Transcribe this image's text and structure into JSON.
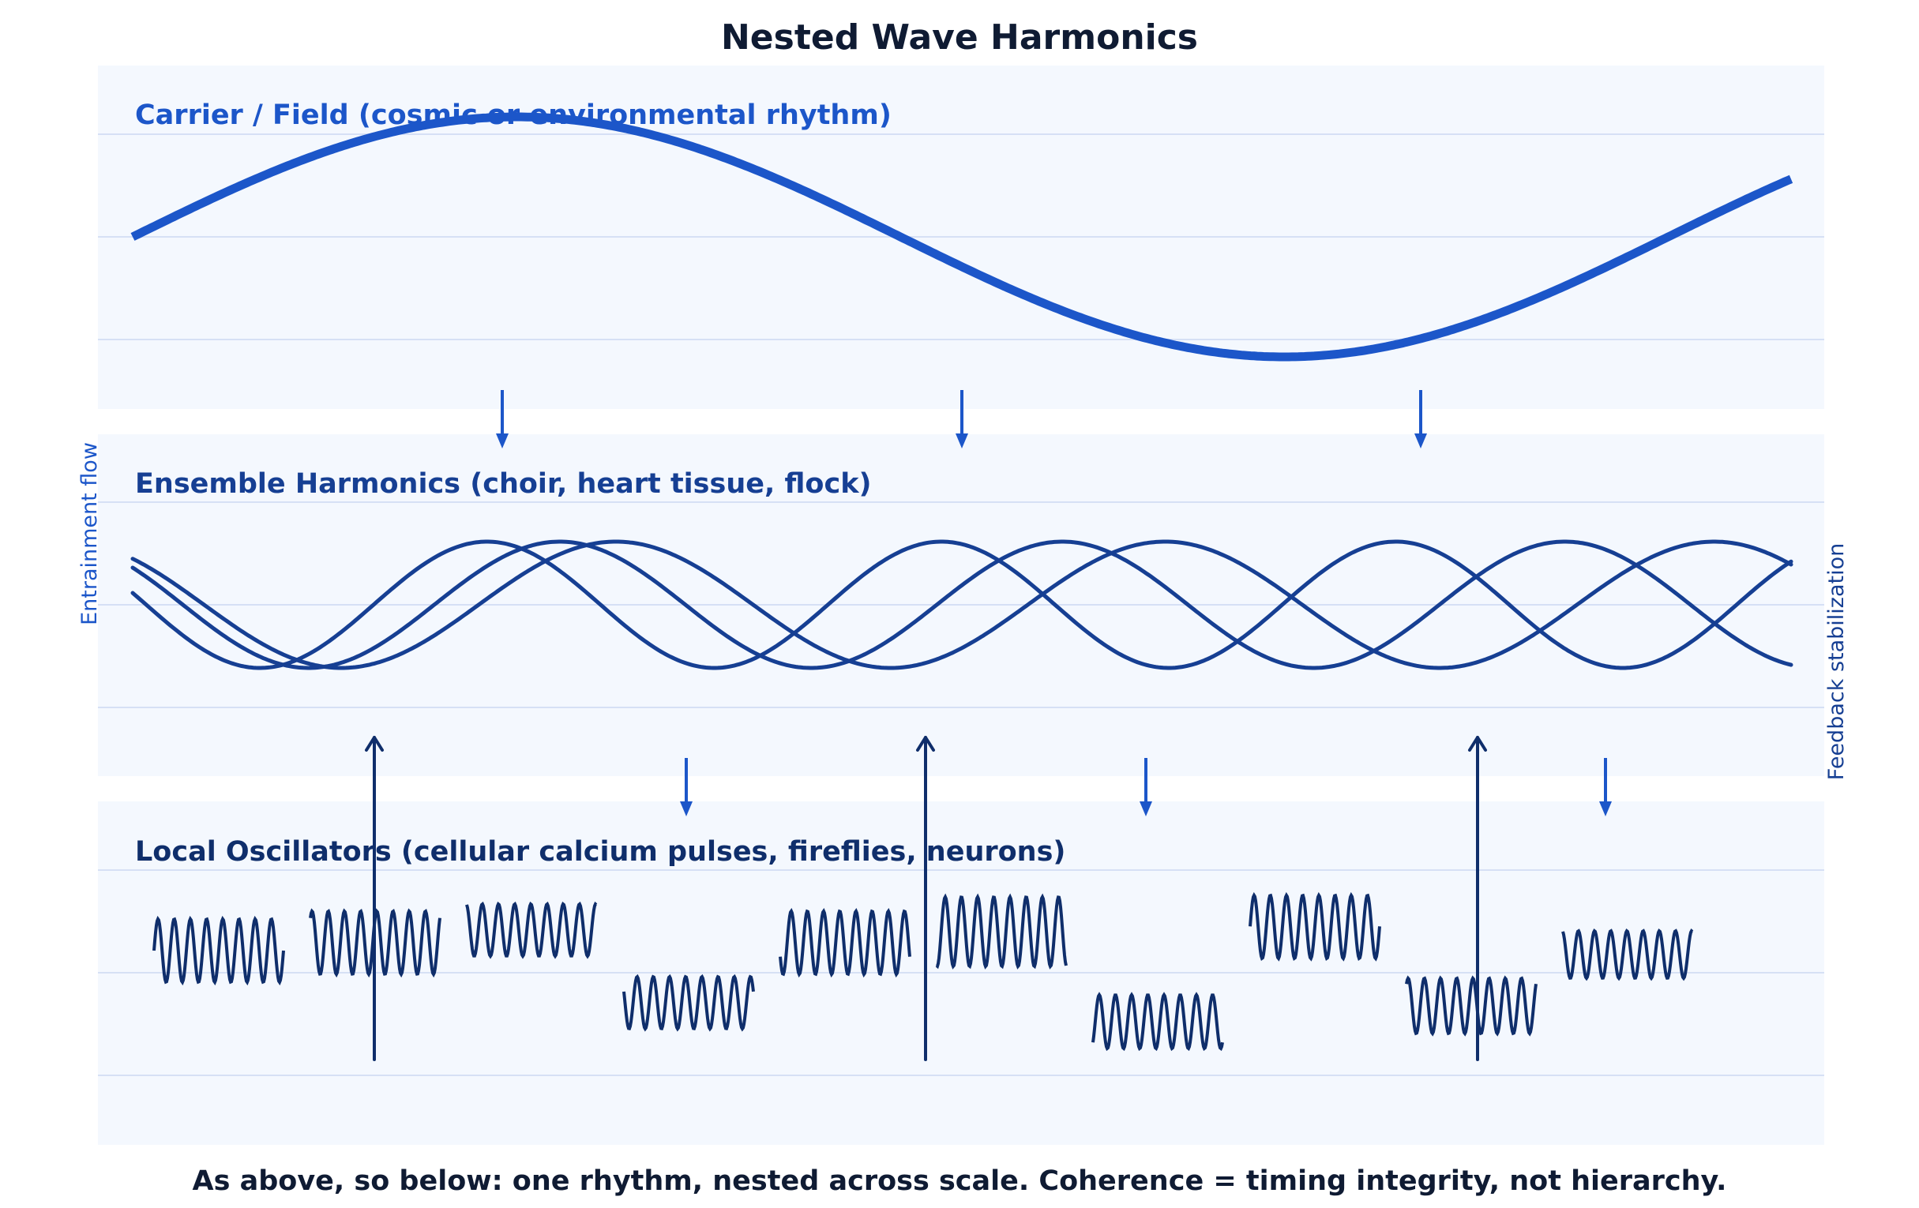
{
  "title": "Nested Wave Harmonics",
  "caption": "As above, so below: one rhythm, nested across scale. Coherence = timing integrity, not hierarchy.",
  "side_labels": {
    "left": "Entrainment flow",
    "right": "Feedback stabilization"
  },
  "panels": [
    {
      "id": "carrier",
      "title": "Carrier / Field (cosmic or environmental rhythm)"
    },
    {
      "id": "ensemble",
      "title": "Ensemble Harmonics (choir, heart tissue, flock)"
    },
    {
      "id": "local",
      "title": "Local Oscillators (cellular calcium pulses, fireflies, neurons)"
    }
  ],
  "colors": {
    "title": "#0f1b33",
    "carrier": "#1c56c9",
    "ensemble": "#163f93",
    "local": "#0f2e6b",
    "panel_bg": "#f4f8fe",
    "grid": "#d6e0f5",
    "down_arrow": "#1c56c9",
    "up_arrow": "#0f2e6b"
  },
  "flow": {
    "downward_arrows_carrier_to_ensemble": 3,
    "downward_arrows_ensemble_to_local": 3,
    "upward_arrows_local_to_ensemble": 3
  }
}
